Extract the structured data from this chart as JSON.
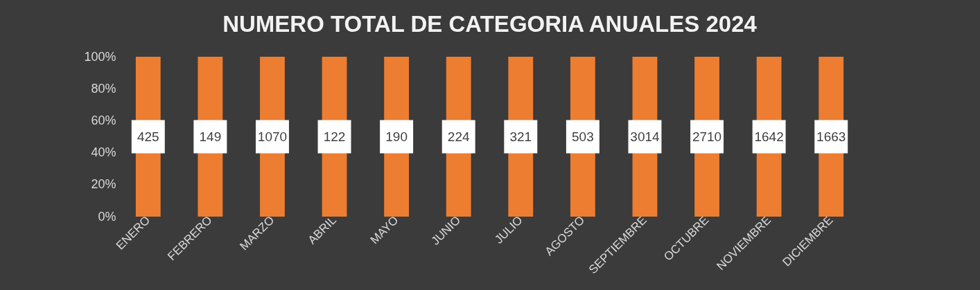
{
  "chart_data": {
    "type": "bar",
    "title": "NUMERO TOTAL DE CATEGORIA ANUALES 2024",
    "categories": [
      "ENERO",
      "FEBRERO",
      "MARZO",
      "ABRIL",
      "MAYO",
      "JUNIO",
      "JULIO",
      "AGOSTO",
      "SEPTIEMBRE",
      "OCTUBRE",
      "NOVIEMBRE",
      "DICIEMBRE"
    ],
    "values": [
      100,
      100,
      100,
      100,
      100,
      100,
      100,
      100,
      100,
      100,
      100,
      100
    ],
    "annotations": [
      "425",
      "149",
      "1070",
      "122",
      "190",
      "224",
      "321",
      "503",
      "3014",
      "2710",
      "1642",
      "1663"
    ],
    "color": "#ed7d31",
    "ylim": [
      0,
      100
    ],
    "yticks": [
      {
        "value": 0,
        "label": "0%"
      },
      {
        "value": 20,
        "label": "20%"
      },
      {
        "value": 40,
        "label": "40%"
      },
      {
        "value": 60,
        "label": "60%"
      },
      {
        "value": 80,
        "label": "80%"
      },
      {
        "value": 100,
        "label": "100%"
      }
    ],
    "grid": false
  }
}
